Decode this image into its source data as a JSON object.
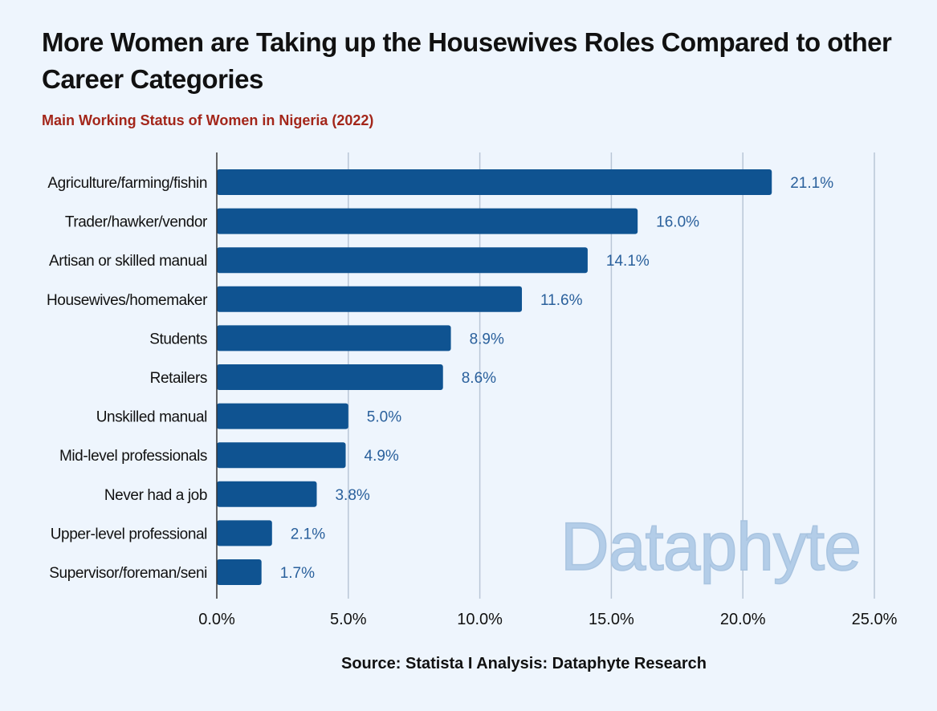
{
  "title": "More Women are Taking up the Housewives Roles Compared to other Career Categories",
  "subtitle": "Main Working Status of Women in Nigeria (2022)",
  "source": "Source: Statista I Analysis: Dataphyte Research",
  "watermark": "Dataphyte",
  "colors": {
    "bar": "#0f5391",
    "value_label": "#2a609c",
    "grid": "#b9c6d6",
    "watermark": "#b3cde8"
  },
  "chart_data": {
    "type": "bar",
    "orientation": "horizontal",
    "categories": [
      "Agriculture/farming/fishin",
      "Trader/hawker/vendor",
      "Artisan or skilled manual",
      "Housewives/homemaker",
      "Students",
      "Retailers",
      "Unskilled manual",
      "Mid-level professionals",
      "Never had a job",
      "Upper-level professional",
      "Supervisor/foreman/seni"
    ],
    "values": [
      21.1,
      16.0,
      14.1,
      11.6,
      8.9,
      8.6,
      5.0,
      4.9,
      3.8,
      2.1,
      1.7
    ],
    "value_labels": [
      "21.1%",
      "16.0%",
      "14.1%",
      "11.6%",
      "8.9%",
      "8.6%",
      "5.0%",
      "4.9%",
      "3.8%",
      "2.1%",
      "1.7%"
    ],
    "xlim": [
      0,
      25
    ],
    "xticks": [
      0,
      5,
      10,
      15,
      20,
      25
    ],
    "xtick_labels": [
      "0.0%",
      "5.0%",
      "10.0%",
      "15.0%",
      "20.0%",
      "25.0%"
    ],
    "xlabel": "",
    "ylabel": "",
    "grid": true
  }
}
